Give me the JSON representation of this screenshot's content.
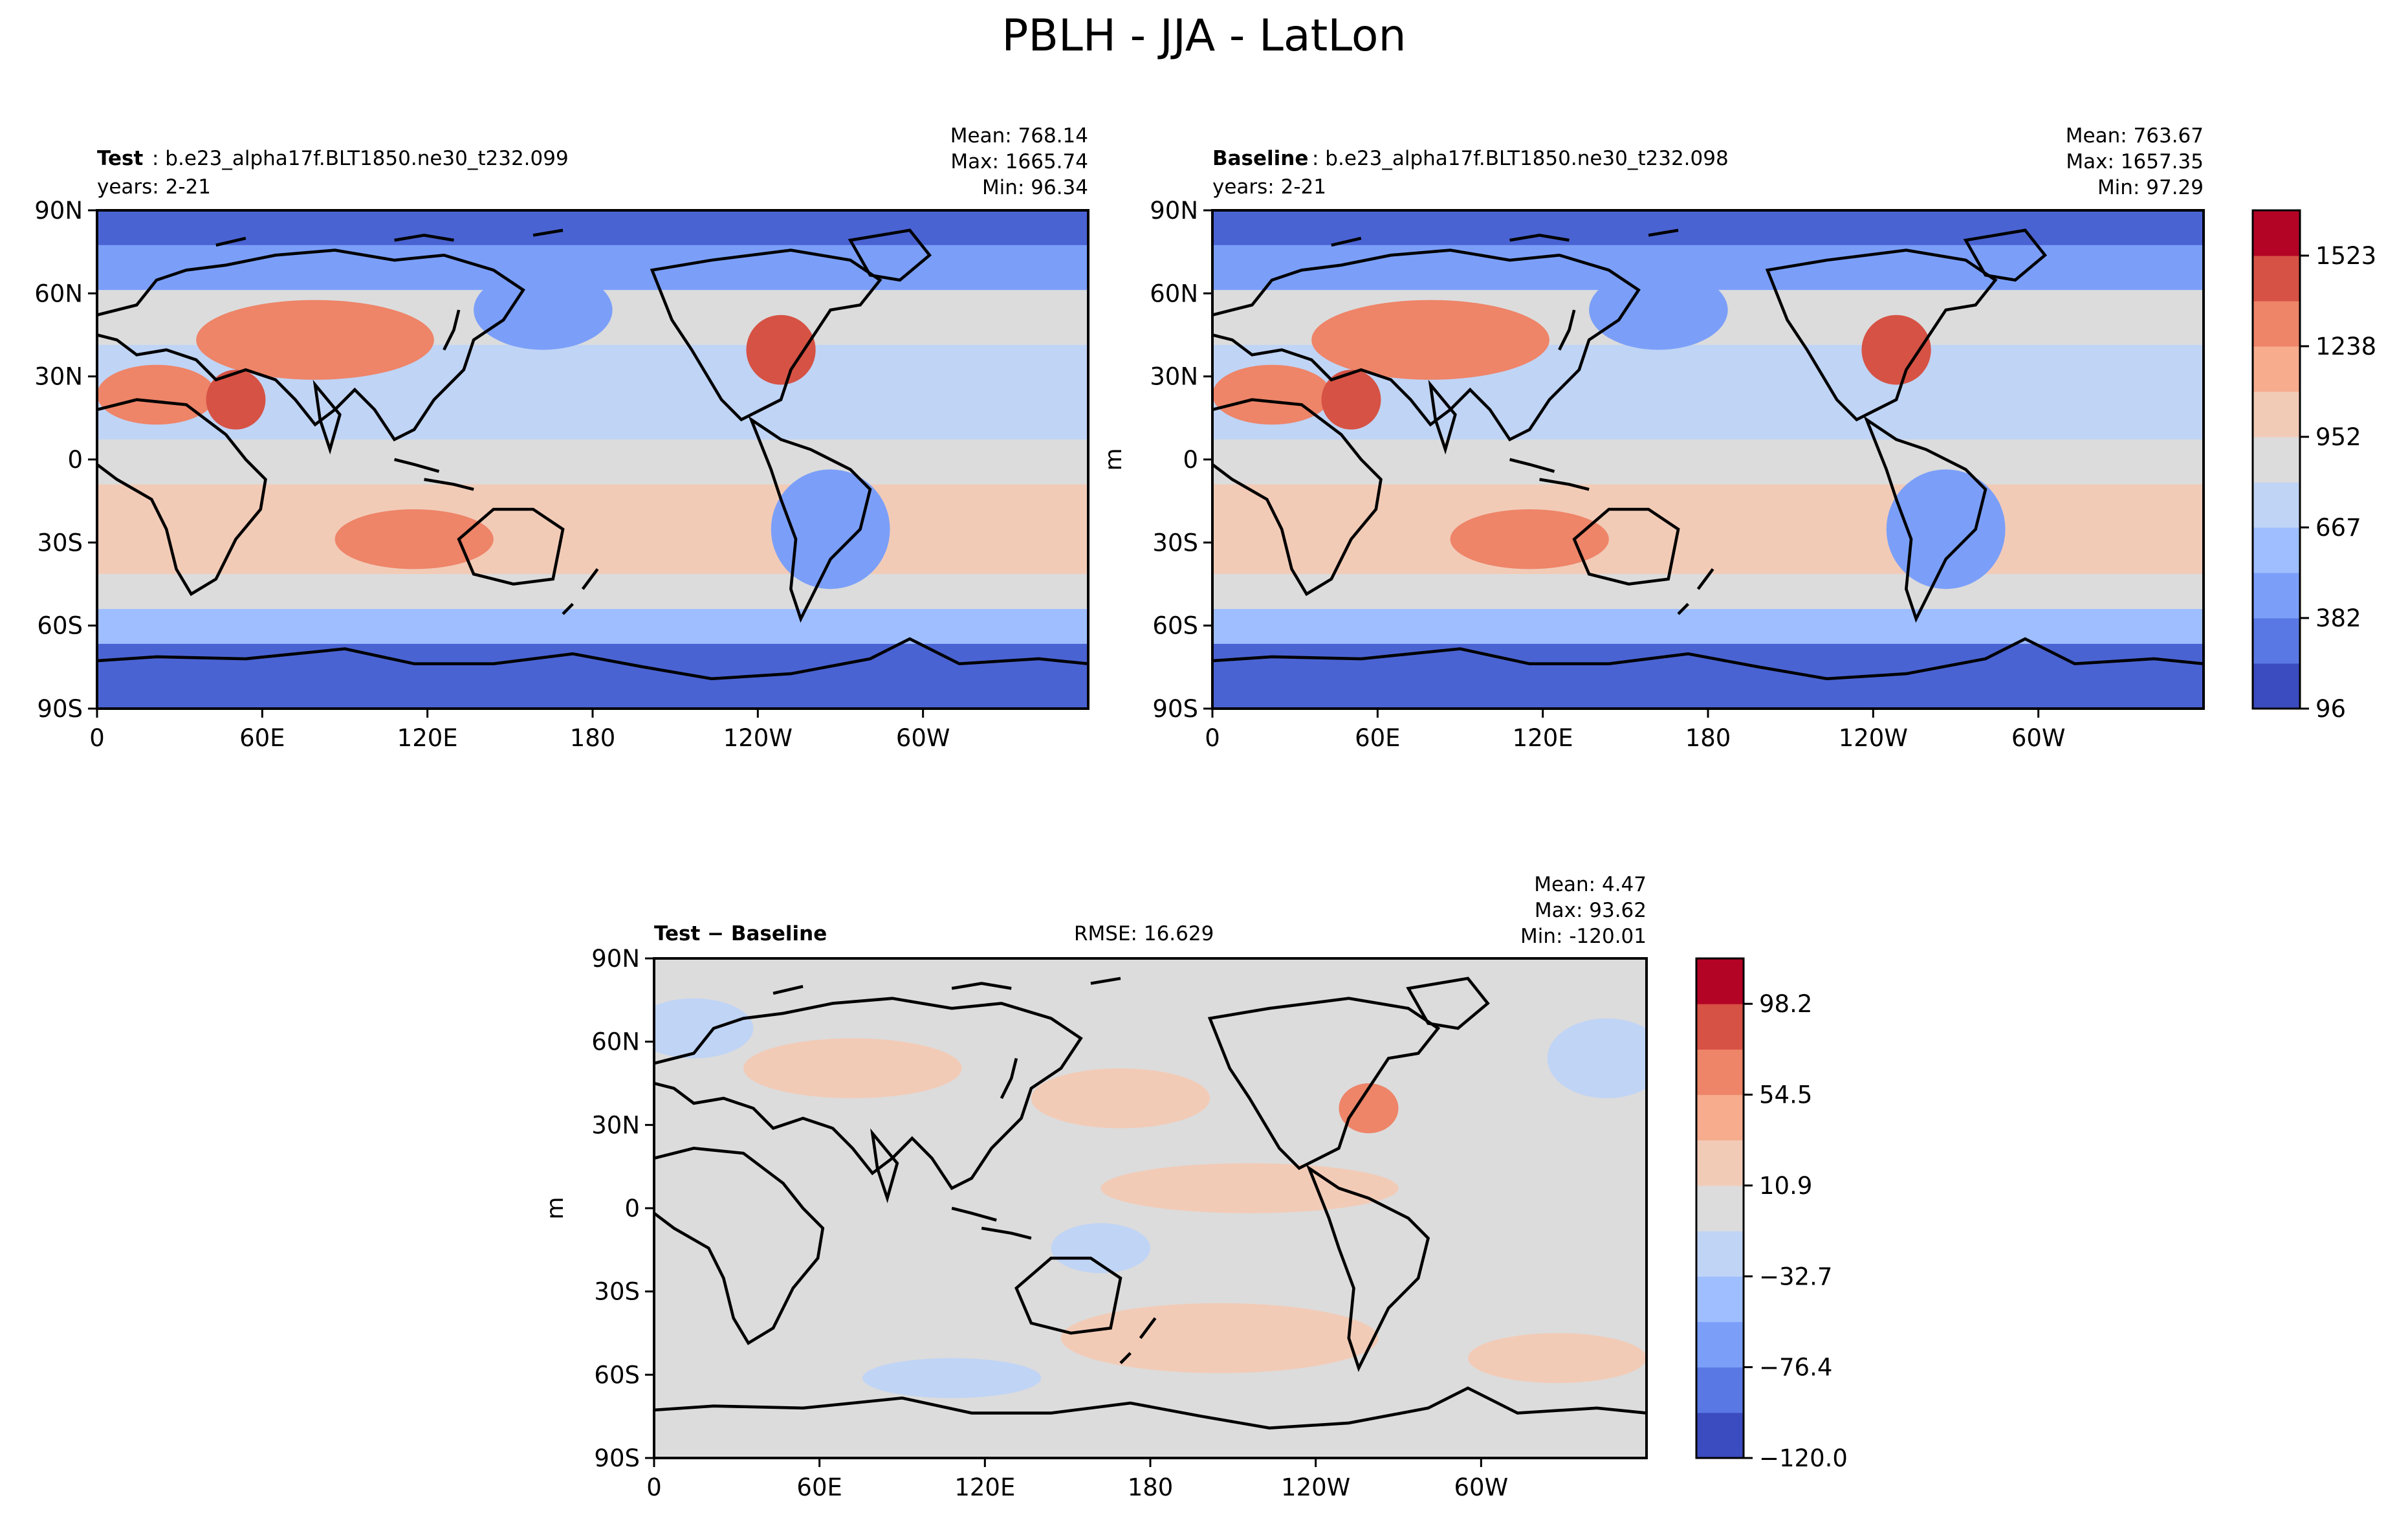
{
  "figure": {
    "title": "PBLH - JJA - LatLon"
  },
  "chart_data": [
    {
      "type": "heatmap",
      "panel": "test",
      "label_bold": "Test",
      "label_rest": ": b.e23_alpha17f.BLT1850.ne30_t232.099",
      "years": "years: 2-21",
      "stats": [
        "Mean: 768.14",
        "Max: 1665.74",
        "Min: 96.34"
      ],
      "x_ticks": [
        "0",
        "60E",
        "120E",
        "180",
        "120W",
        "60W"
      ],
      "y_ticks": [
        "90N",
        "60N",
        "30N",
        "0",
        "30S",
        "60S",
        "90S"
      ],
      "xlim": [
        0,
        360
      ],
      "ylim": [
        -90,
        90
      ],
      "ylabel": ""
    },
    {
      "type": "heatmap",
      "panel": "baseline",
      "label_bold": "Baseline",
      "label_rest": ": b.e23_alpha17f.BLT1850.ne30_t232.098",
      "years": "years: 2-21",
      "stats": [
        "Mean: 763.67",
        "Max: 1657.35",
        "Min: 97.29"
      ],
      "x_ticks": [
        "0",
        "60E",
        "120E",
        "180",
        "120W",
        "60W"
      ],
      "y_ticks": [
        "90N",
        "60N",
        "30N",
        "0",
        "30S",
        "60S",
        "90S"
      ],
      "xlim": [
        0,
        360
      ],
      "ylim": [
        -90,
        90
      ],
      "ylabel": "m",
      "colorbar": {
        "ticks": [
          "1523",
          "1238",
          "952",
          "667",
          "382",
          "96"
        ],
        "range": [
          96,
          1665
        ],
        "colors": [
          "#3b4cc0",
          "#5a78e4",
          "#7b9ff9",
          "#9ebeff",
          "#c0d4f5",
          "#dddcdc",
          "#f2cbb7",
          "#f7ac8e",
          "#ee8468",
          "#d65244",
          "#b40426"
        ]
      }
    },
    {
      "type": "heatmap",
      "panel": "difference",
      "label_bold": "Test − Baseline",
      "rmse": "RMSE: 16.629",
      "stats": [
        "Mean:  4.47",
        "Max: 93.62",
        "Min: -120.01"
      ],
      "x_ticks": [
        "0",
        "60E",
        "120E",
        "180",
        "120W",
        "60W"
      ],
      "y_ticks": [
        "90N",
        "60N",
        "30N",
        "0",
        "30S",
        "60S",
        "90S"
      ],
      "xlim": [
        0,
        360
      ],
      "ylim": [
        -90,
        90
      ],
      "ylabel": "m",
      "colorbar": {
        "ticks": [
          "98.2",
          "54.5",
          "10.9",
          "−32.7",
          "−76.4",
          "−120.0"
        ],
        "range": [
          -120.0,
          120.0
        ],
        "colors": [
          "#3b4cc0",
          "#5a78e4",
          "#7b9ff9",
          "#9ebeff",
          "#c0d4f5",
          "#dddcdc",
          "#f2cbb7",
          "#f7ac8e",
          "#ee8468",
          "#d65244",
          "#b40426"
        ]
      }
    }
  ],
  "palette": {
    "axis": "#000000",
    "coast": "#000000",
    "neutral": "#dcdcdc",
    "light_blue": "#c0d4f5",
    "mid_blue": "#7b9ff9",
    "deep_blue": "#4a63d3",
    "light_red": "#f2cbb7",
    "mid_red": "#ee8468",
    "deep_red": "#d65244"
  }
}
